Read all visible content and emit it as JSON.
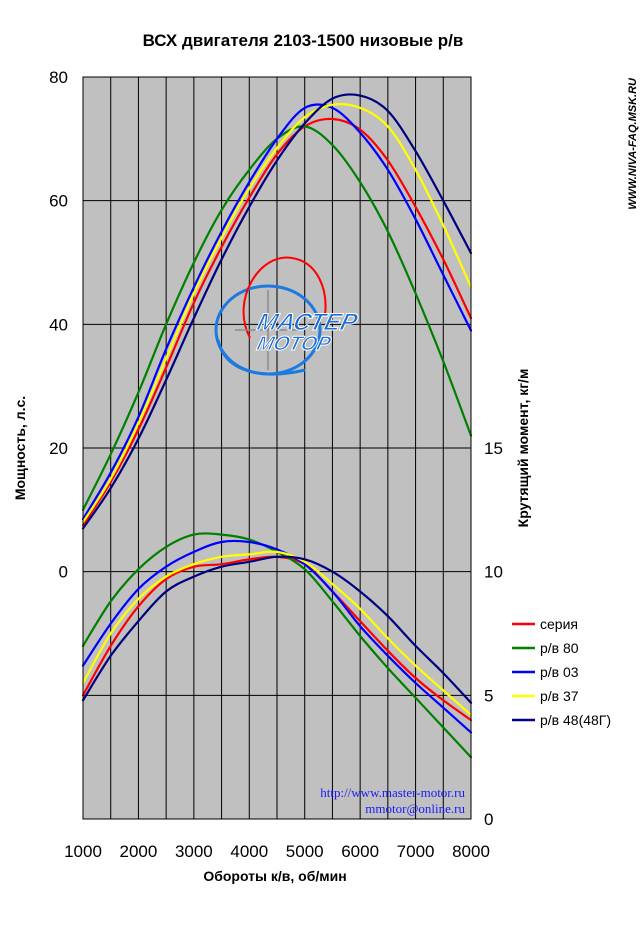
{
  "chart_data": {
    "type": "line",
    "title": "ВСХ двигателя 2103-1500 низовые р/в",
    "xlabel": "Обороты к/в, об/мин",
    "ylabel_left": "Мощность, л.с.",
    "ylabel_right": "Крутящий момент, кг/м",
    "x_ticks": [
      1000,
      2000,
      3000,
      4000,
      5000,
      6000,
      7000,
      8000
    ],
    "y_left_ticks": [
      "0",
      "20",
      "40",
      "60",
      "80"
    ],
    "y_right_ticks": [
      "0",
      "5",
      "10",
      "15"
    ],
    "xlim": [
      1000,
      8000
    ],
    "ylim_left": [
      -40,
      80
    ],
    "ylim_right": [
      0,
      30
    ],
    "grid": "vertical every 500, horizontal every 20",
    "legend_position": "right",
    "x": [
      1000,
      1500,
      2000,
      2500,
      3000,
      3500,
      4000,
      4500,
      5000,
      5500,
      6000,
      6500,
      7000,
      7500,
      8000
    ],
    "power_series": [
      {
        "name": "серия",
        "color": "#ff0000",
        "values": [
          7.5,
          14.5,
          23,
          33,
          43.5,
          52.5,
          60.5,
          67.5,
          72,
          73.2,
          71.5,
          66.5,
          59,
          50.5,
          41
        ]
      },
      {
        "name": "р/в 80",
        "color": "#008000",
        "values": [
          10,
          19,
          29,
          40,
          50,
          58.5,
          65,
          70,
          72,
          69,
          63,
          55,
          45,
          34,
          22
        ]
      },
      {
        "name": "р/в 03",
        "color": "#0000ff",
        "values": [
          8.5,
          16,
          25,
          36,
          46,
          55,
          63,
          70,
          75,
          75,
          71,
          65,
          57,
          48,
          39
        ]
      },
      {
        "name": "р/в 37",
        "color": "#ffff00",
        "values": [
          8,
          15,
          24,
          34.5,
          45,
          54,
          62,
          68.5,
          73.5,
          75.5,
          75,
          72,
          65,
          56,
          46
        ]
      },
      {
        "name": "р/в 48(48Г)",
        "color": "#000080",
        "values": [
          7,
          13.5,
          21.5,
          31,
          41,
          50.5,
          59,
          66.5,
          72.5,
          76.5,
          77,
          74.5,
          68,
          60,
          51.5
        ]
      }
    ],
    "torque_series": [
      {
        "name": "серия",
        "color": "#ff0000",
        "values": [
          5,
          7,
          8.6,
          9.7,
          10.2,
          10.3,
          10.5,
          10.6,
          10.3,
          9.2,
          8,
          6.8,
          5.7,
          4.8,
          4
        ]
      },
      {
        "name": "р/в 80",
        "color": "#008000",
        "values": [
          7,
          8.8,
          10.1,
          11,
          11.5,
          11.5,
          11.3,
          10.8,
          10.1,
          8.8,
          7.4,
          6.1,
          4.9,
          3.7,
          2.5
        ]
      },
      {
        "name": "р/в 03",
        "color": "#0000ff",
        "values": [
          6.2,
          7.9,
          9.3,
          10.2,
          10.8,
          11.2,
          11.2,
          10.9,
          10.3,
          9.2,
          7.8,
          6.6,
          5.5,
          4.5,
          3.5
        ]
      },
      {
        "name": "р/в 37",
        "color": "#ffff00",
        "values": [
          5.5,
          7.5,
          8.9,
          9.8,
          10.3,
          10.6,
          10.7,
          10.8,
          10.4,
          9.5,
          8.5,
          7.3,
          6.2,
          5.2,
          4.2
        ]
      },
      {
        "name": "р/в 48(48Г)",
        "color": "#000080",
        "values": [
          4.8,
          6.6,
          8,
          9.2,
          9.8,
          10.2,
          10.4,
          10.6,
          10.5,
          10,
          9.2,
          8.2,
          7,
          5.9,
          4.7
        ]
      }
    ],
    "annotations": [
      "http://www.master-motor.ru",
      "mmotor@online.ru"
    ],
    "side_label": "WWW.NIVA-FAQ.MSK.RU",
    "logo_text": [
      "МАСТЕР",
      "МОТОР"
    ]
  }
}
